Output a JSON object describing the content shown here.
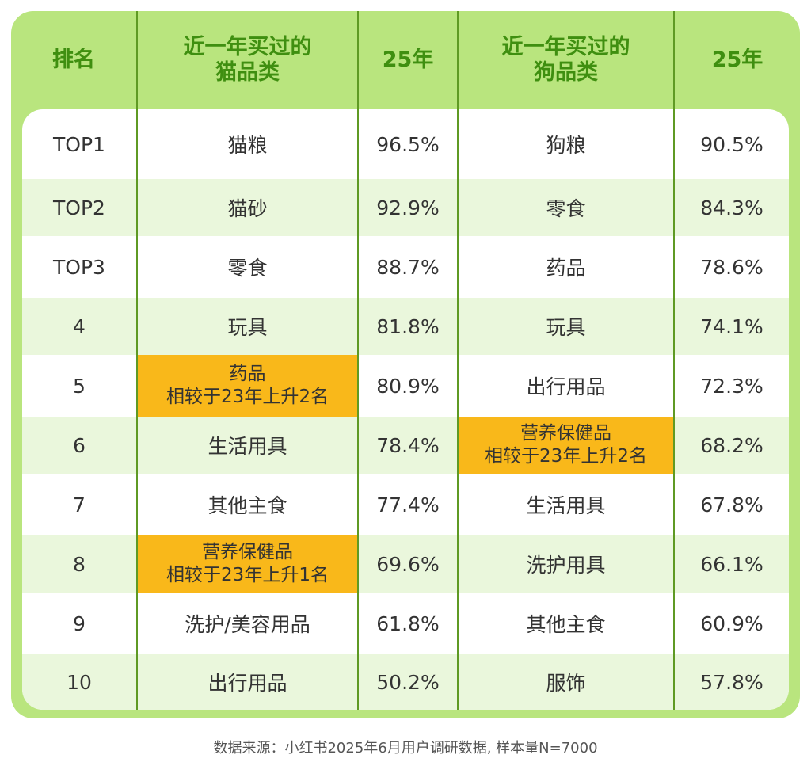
{
  "header": {
    "rank": "排名",
    "cat_category_line1": "近一年买过的",
    "cat_category_line2": "猫品类",
    "cat_year": "25年",
    "dog_category_line1": "近一年买过的",
    "dog_category_line2": "狗品类",
    "dog_year": "25年"
  },
  "rows": [
    {
      "rank": "TOP1",
      "cat": "猫粮",
      "cat_pct": "96.5%",
      "dog": "狗粮",
      "dog_pct": "90.5%"
    },
    {
      "rank": "TOP2",
      "cat": "猫砂",
      "cat_pct": "92.9%",
      "dog": "零食",
      "dog_pct": "84.3%"
    },
    {
      "rank": "TOP3",
      "cat": "零食",
      "cat_pct": "88.7%",
      "dog": "药品",
      "dog_pct": "78.6%"
    },
    {
      "rank": "4",
      "cat": "玩具",
      "cat_pct": "81.8%",
      "dog": "玩具",
      "dog_pct": "74.1%"
    },
    {
      "rank": "5",
      "cat": "药品",
      "cat_note": "相较于23年上升2名",
      "cat_pct": "80.9%",
      "dog": "出行用品",
      "dog_pct": "72.3%"
    },
    {
      "rank": "6",
      "cat": "生活用具",
      "cat_pct": "78.4%",
      "dog": "营养保健品",
      "dog_note": "相较于23年上升2名",
      "dog_pct": "68.2%"
    },
    {
      "rank": "7",
      "cat": "其他主食",
      "cat_pct": "77.4%",
      "dog": "生活用具",
      "dog_pct": "67.8%"
    },
    {
      "rank": "8",
      "cat": "营养保健品",
      "cat_note": "相较于23年上升1名",
      "cat_pct": "69.6%",
      "dog": "洗护用具",
      "dog_pct": "66.1%"
    },
    {
      "rank": "9",
      "cat": "洗护/美容用品",
      "cat_pct": "61.8%",
      "dog": "其他主食",
      "dog_pct": "60.9%"
    },
    {
      "rank": "10",
      "cat": "出行用品",
      "cat_pct": "50.2%",
      "dog": "服饰",
      "dog_pct": "57.8%"
    }
  ],
  "source": "数据来源：小红书2025年6月用户调研数据, 样本量N=7000",
  "colors": {
    "frame": "#b9e57e",
    "header_text": "#3f8f10",
    "divider": "#5f9a24",
    "alt_row": "#eaf7dc",
    "highlight": "#f9b81a"
  },
  "chart_data": {
    "type": "table",
    "columns": [
      "排名",
      "近一年买过的猫品类",
      "25年",
      "近一年买过的狗品类",
      "25年"
    ],
    "rows": [
      [
        "TOP1",
        "猫粮",
        96.5,
        "狗粮",
        90.5
      ],
      [
        "TOP2",
        "猫砂",
        92.9,
        "零食",
        84.3
      ],
      [
        "TOP3",
        "零食",
        88.7,
        "药品",
        78.6
      ],
      [
        "4",
        "玩具",
        81.8,
        "玩具",
        74.1
      ],
      [
        "5",
        "药品",
        80.9,
        "出行用品",
        72.3
      ],
      [
        "6",
        "生活用具",
        78.4,
        "营养保健品",
        68.2
      ],
      [
        "7",
        "其他主食",
        77.4,
        "生活用具",
        67.8
      ],
      [
        "8",
        "营养保健品",
        69.6,
        "洗护用具",
        66.1
      ],
      [
        "9",
        "洗护/美容用品",
        61.8,
        "其他主食",
        60.9
      ],
      [
        "10",
        "出行用品",
        50.2,
        "服饰",
        57.8
      ]
    ],
    "highlights": [
      {
        "column": "cat",
        "rank": "5",
        "note": "相较于23年上升2名"
      },
      {
        "column": "dog",
        "rank": "6",
        "note": "相较于23年上升2名"
      },
      {
        "column": "cat",
        "rank": "8",
        "note": "相较于23年上升1名"
      }
    ]
  }
}
